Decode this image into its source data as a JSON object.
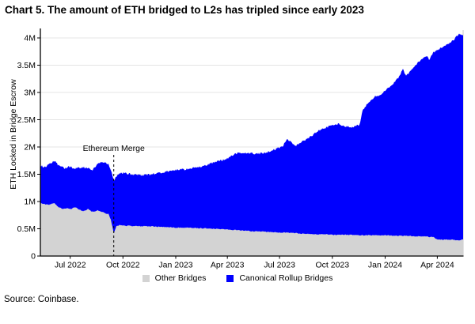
{
  "title": "Chart 5. The amount of ETH bridged to L2s has tripled since early 2023",
  "source": "Source: Coinbase.",
  "chart_data": {
    "type": "area",
    "stacked": true,
    "title": "Chart 5. The amount of ETH bridged to L2s has tripled since early 2023",
    "xlabel": "",
    "ylabel": "ETH Locked in Bridge Escrow",
    "unit": "ETH (millions)",
    "ylim": [
      0,
      4.15
    ],
    "grid": "horizontal",
    "legend_position": "bottom",
    "x_domain": [
      "2022-05-10",
      "2024-05-16"
    ],
    "x_ticks": [
      {
        "label": "Jul 2022",
        "date": "2022-07-01"
      },
      {
        "label": "Oct 2022",
        "date": "2022-10-01"
      },
      {
        "label": "Jan 2023",
        "date": "2023-01-01"
      },
      {
        "label": "Apr 2023",
        "date": "2023-04-01"
      },
      {
        "label": "Jul 2023",
        "date": "2023-07-01"
      },
      {
        "label": "Oct 2023",
        "date": "2023-10-01"
      },
      {
        "label": "Jan 2024",
        "date": "2024-01-01"
      },
      {
        "label": "Apr 2024",
        "date": "2024-04-01"
      }
    ],
    "y_ticks": [
      {
        "label": "0",
        "v": 0
      },
      {
        "label": "0.5M",
        "v": 0.5
      },
      {
        "label": "1M",
        "v": 1
      },
      {
        "label": "1.5M",
        "v": 1.5
      },
      {
        "label": "2M",
        "v": 2
      },
      {
        "label": "2.5M",
        "v": 2.5
      },
      {
        "label": "3M",
        "v": 3
      },
      {
        "label": "3.5M",
        "v": 3.5
      },
      {
        "label": "4M",
        "v": 4
      }
    ],
    "annotation": {
      "label": "Ethereum Merge",
      "date": "2022-09-15"
    },
    "dates": [
      "2022-05-10",
      "2022-05-18",
      "2022-05-25",
      "2022-06-03",
      "2022-06-10",
      "2022-06-17",
      "2022-06-22",
      "2022-06-28",
      "2022-07-02",
      "2022-07-09",
      "2022-07-16",
      "2022-07-23",
      "2022-08-01",
      "2022-08-09",
      "2022-08-19",
      "2022-08-26",
      "2022-08-31",
      "2022-09-06",
      "2022-09-10",
      "2022-09-15",
      "2022-09-19",
      "2022-09-25",
      "2022-10-02",
      "2022-10-16",
      "2022-11-06",
      "2022-11-27",
      "2022-12-18",
      "2023-01-03",
      "2023-01-17",
      "2023-01-28",
      "2023-02-08",
      "2023-02-18",
      "2023-03-04",
      "2023-03-13",
      "2023-03-20",
      "2023-03-28",
      "2023-04-05",
      "2023-04-13",
      "2023-04-23",
      "2023-05-07",
      "2023-05-20",
      "2023-05-31",
      "2023-06-14",
      "2023-06-28",
      "2023-07-07",
      "2023-07-14",
      "2023-07-21",
      "2023-07-29",
      "2023-08-08",
      "2023-08-17",
      "2023-08-28",
      "2023-09-04",
      "2023-09-11",
      "2023-09-20",
      "2023-10-01",
      "2023-10-12",
      "2023-10-23",
      "2023-11-03",
      "2023-11-11",
      "2023-11-18",
      "2023-11-22",
      "2023-11-27",
      "2023-12-05",
      "2023-12-13",
      "2023-12-22",
      "2023-12-31",
      "2024-01-08",
      "2024-01-18",
      "2024-01-25",
      "2024-02-01",
      "2024-02-06",
      "2024-02-12",
      "2024-02-19",
      "2024-02-28",
      "2024-03-07",
      "2024-03-14",
      "2024-03-18",
      "2024-03-24",
      "2024-03-31",
      "2024-04-07",
      "2024-04-14",
      "2024-04-21",
      "2024-04-28",
      "2024-05-04",
      "2024-05-10",
      "2024-05-14"
    ],
    "series": [
      {
        "name": "Other Bridges",
        "color": "#d3d3d3",
        "values": [
          0.97,
          0.95,
          0.94,
          0.97,
          0.9,
          0.87,
          0.87,
          0.88,
          0.86,
          0.9,
          0.86,
          0.82,
          0.86,
          0.81,
          0.84,
          0.81,
          0.78,
          0.77,
          0.66,
          0.42,
          0.54,
          0.57,
          0.56,
          0.55,
          0.55,
          0.54,
          0.53,
          0.52,
          0.52,
          0.52,
          0.51,
          0.51,
          0.5,
          0.5,
          0.49,
          0.49,
          0.48,
          0.48,
          0.47,
          0.46,
          0.45,
          0.45,
          0.44,
          0.43,
          0.43,
          0.43,
          0.42,
          0.42,
          0.41,
          0.41,
          0.4,
          0.4,
          0.4,
          0.4,
          0.39,
          0.39,
          0.39,
          0.39,
          0.38,
          0.38,
          0.38,
          0.38,
          0.38,
          0.38,
          0.38,
          0.38,
          0.38,
          0.37,
          0.37,
          0.37,
          0.37,
          0.37,
          0.36,
          0.36,
          0.36,
          0.36,
          0.35,
          0.35,
          0.31,
          0.3,
          0.3,
          0.3,
          0.3,
          0.29,
          0.29,
          0.3
        ]
      },
      {
        "name": "Canonical Rollup Bridges",
        "color": "#0000fe",
        "values": [
          0.69,
          0.68,
          0.74,
          0.78,
          0.77,
          0.76,
          0.74,
          0.76,
          0.77,
          0.7,
          0.76,
          0.81,
          0.75,
          0.77,
          0.87,
          0.91,
          0.94,
          0.91,
          0.91,
          0.97,
          0.91,
          0.94,
          0.96,
          0.95,
          0.94,
          0.97,
          1.03,
          1.06,
          1.07,
          1.09,
          1.12,
          1.14,
          1.2,
          1.23,
          1.26,
          1.29,
          1.33,
          1.39,
          1.42,
          1.43,
          1.43,
          1.43,
          1.48,
          1.55,
          1.59,
          1.72,
          1.67,
          1.6,
          1.69,
          1.73,
          1.82,
          1.88,
          1.92,
          1.95,
          2.01,
          2.03,
          1.99,
          1.97,
          2.01,
          2.03,
          2.27,
          2.36,
          2.44,
          2.54,
          2.57,
          2.64,
          2.72,
          2.83,
          2.91,
          3.05,
          2.95,
          2.99,
          3.1,
          3.2,
          3.26,
          3.31,
          3.25,
          3.37,
          3.46,
          3.51,
          3.56,
          3.6,
          3.65,
          3.73,
          3.79,
          3.75
        ]
      }
    ],
    "jitter": {
      "total": 0.018,
      "other": 0.008
    },
    "colors": {
      "axis": "#000000",
      "grid": "#e4e4e4",
      "right_border": "#c9c9c9"
    }
  }
}
